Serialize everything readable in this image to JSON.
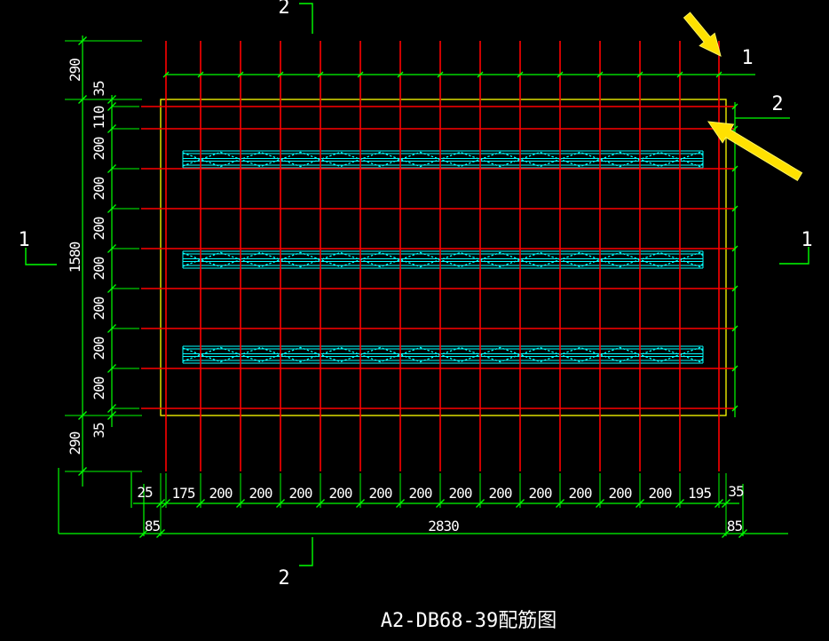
{
  "title": "A2-DB68-39配筋图",
  "labels": {
    "section_cut_1": "1",
    "section_cut_2": "2",
    "callout_vertical_bars": "1",
    "callout_horizontal_bars": "2"
  },
  "dimensions": {
    "left_outer": [
      "290",
      "1580",
      "290"
    ],
    "left_inner": [
      "35",
      "110",
      "200",
      "200",
      "200",
      "200",
      "200",
      "200",
      "200",
      "35"
    ],
    "bottom_inner": [
      "25",
      "175",
      "200",
      "200",
      "200",
      "200",
      "200",
      "200",
      "200",
      "200",
      "200",
      "200",
      "200",
      "200",
      "195",
      "35"
    ],
    "bottom_outer": [
      "85",
      "2830",
      "85"
    ]
  },
  "icons": {
    "arrow_1": "yellow-arrow-pointing-down-right",
    "arrow_2": "yellow-arrow-pointing-up-left"
  },
  "colors": {
    "background": "#000000",
    "rebar": "#ff0000",
    "dimension": "#00ff00",
    "slab_outline": "#ffff00",
    "truss": "#00ffff",
    "text": "#ffffff",
    "annotation_arrow": "#ffe100"
  }
}
